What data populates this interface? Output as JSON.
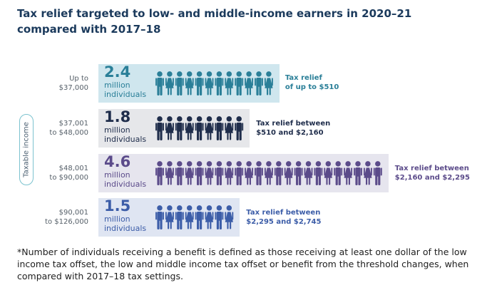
{
  "chart_data": {
    "type": "bar",
    "title": "Tax relief targeted to low- and middle-income earners in 2020–21 compared with 2017–18",
    "ylabel": "Taxable income",
    "unit_lines": [
      "million",
      "individuals"
    ],
    "categories": [
      [
        "Up to",
        "$37,000"
      ],
      [
        "$37,001",
        "to $48,000"
      ],
      [
        "$48,001",
        "to $90,000"
      ],
      [
        "$90,001",
        "to $126,000"
      ]
    ],
    "values": [
      2.4,
      1.8,
      4.6,
      1.5
    ],
    "value_labels": [
      "2.4",
      "1.8",
      "4.6",
      "1.5"
    ],
    "annotations": [
      [
        "Tax relief",
        "of up to $510"
      ],
      [
        "Tax relief between",
        "$510 and $2,160"
      ],
      [
        "Tax relief between",
        "$2,160 and $2,295"
      ],
      [
        "Tax relief between",
        "$2,295 and $2,745"
      ]
    ],
    "colors": [
      "#2a7f98",
      "#1f2d4b",
      "#5b4b8a",
      "#3c5da8"
    ],
    "band_colors": [
      "#cfe6ee",
      "#e6e7ea",
      "#e6e5ee",
      "#dfe5f2"
    ],
    "xlim": [
      0,
      4.6
    ],
    "grid": false,
    "legend": "none"
  },
  "footnote": "*Number of individuals receiving a benefit is defined as those receiving at least one dollar of the low income tax offset, the low and middle income tax offset or benefit from the threshold changes, when compared with 2017–18 tax settings."
}
